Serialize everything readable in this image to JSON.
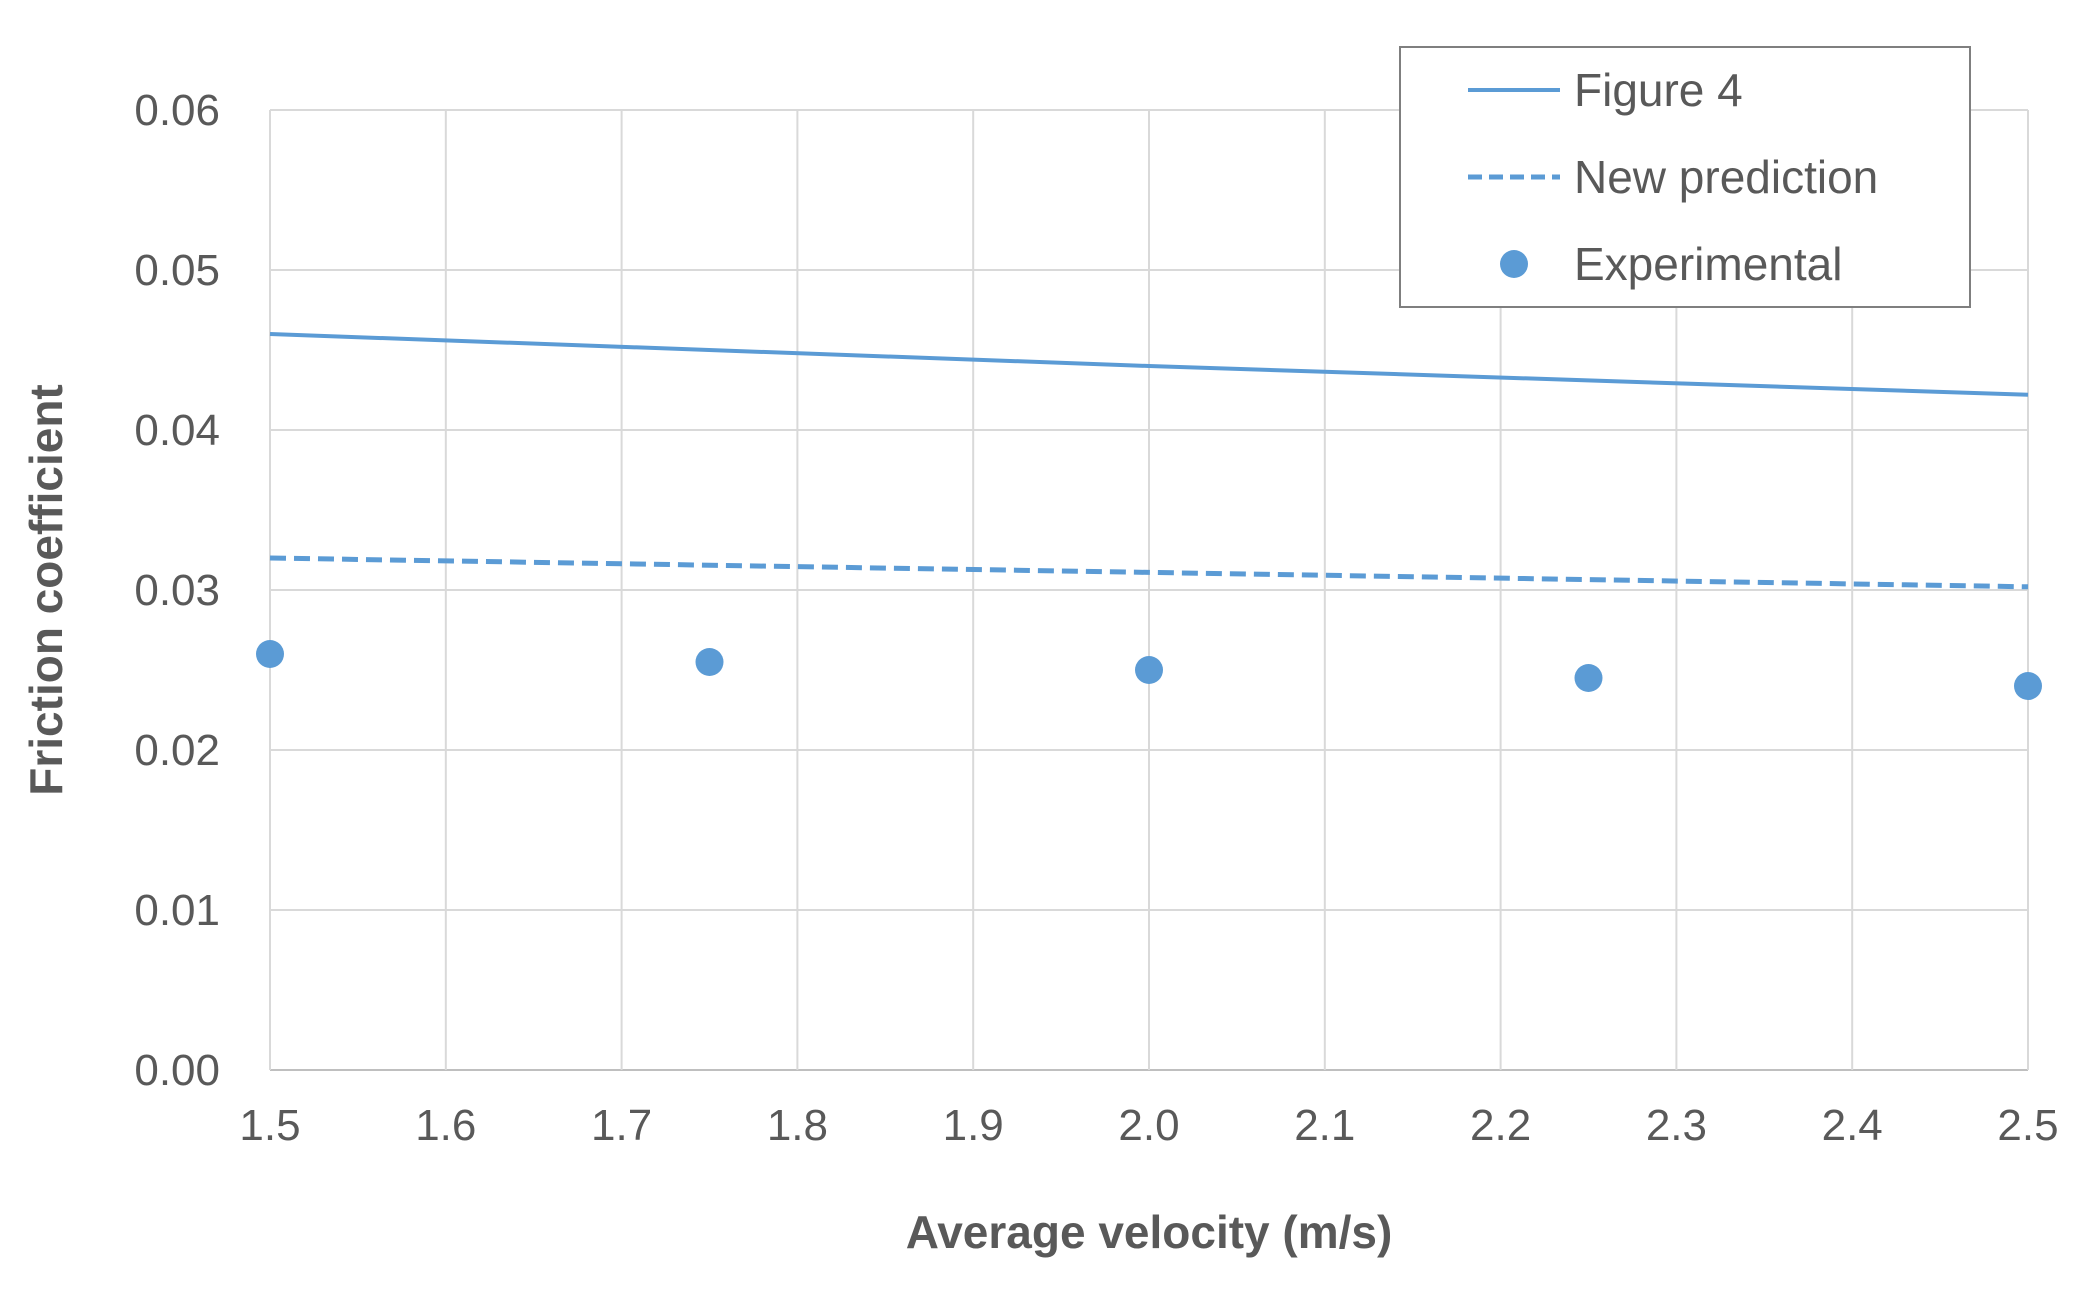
{
  "chart_data": {
    "type": "line",
    "xlabel": "Average velocity (m/s)",
    "ylabel": "Friction coefficient",
    "xlim": [
      1.5,
      2.5
    ],
    "ylim": [
      0,
      0.06
    ],
    "x_ticks": [
      "1.5",
      "1.6",
      "1.7",
      "1.8",
      "1.9",
      "2.0",
      "2.1",
      "2.2",
      "2.3",
      "2.4",
      "2.5"
    ],
    "y_ticks": [
      "0.00",
      "0.01",
      "0.02",
      "0.03",
      "0.04",
      "0.05",
      "0.06"
    ],
    "grid": true,
    "legend_position": "top-right",
    "series": [
      {
        "name": "Figure 4",
        "style": "solid-line",
        "color": "#5B9BD5",
        "x": [
          1.5,
          2.0,
          2.5
        ],
        "y": [
          0.046,
          0.044,
          0.0422
        ]
      },
      {
        "name": "New prediction",
        "style": "dashed-line",
        "color": "#5B9BD5",
        "x": [
          1.5,
          2.0,
          2.5
        ],
        "y": [
          0.032,
          0.0311,
          0.0302
        ]
      },
      {
        "name": "Experimental",
        "style": "markers",
        "color": "#5B9BD5",
        "x": [
          1.5,
          1.75,
          2.0,
          2.25,
          2.5
        ],
        "y": [
          0.026,
          0.0255,
          0.025,
          0.0245,
          0.024
        ]
      }
    ]
  }
}
